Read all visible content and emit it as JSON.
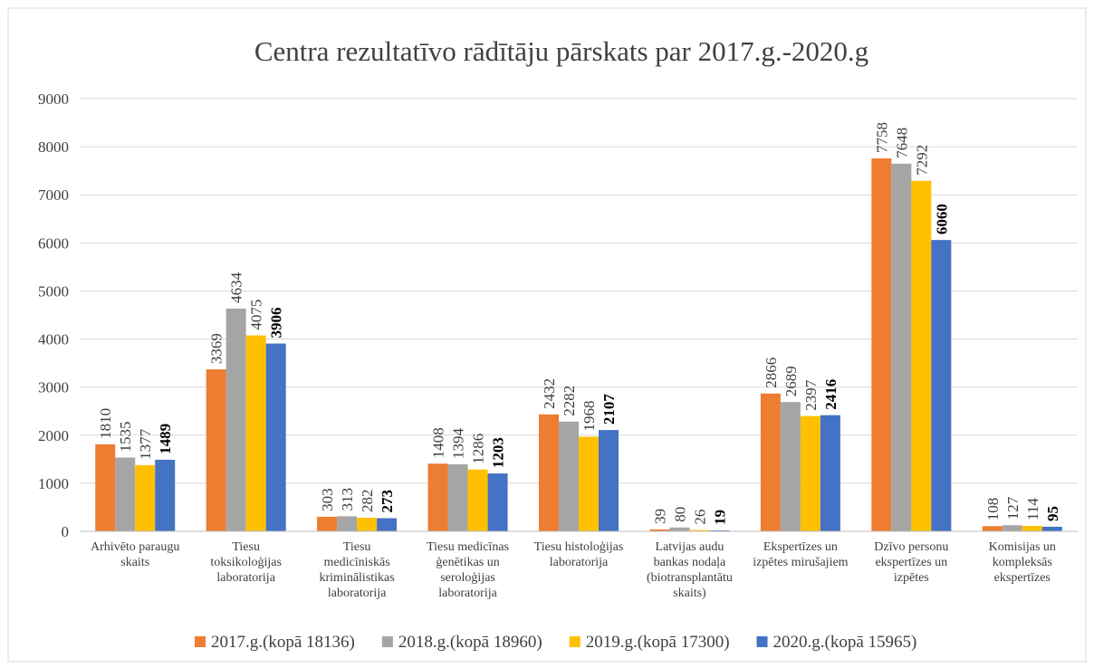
{
  "chart_data": {
    "type": "bar",
    "title": "Centra rezultatīvo rādītāju pārskats  par 2017.g.-2020.g",
    "categories": [
      "Arhivēto paraugu\nskaits",
      "Tiesu\ntoksikoloģijas\nlaboratorija",
      "Tiesu\nmedicīniskās\nkriminālistikas\nlaboratorija",
      "Tiesu medicīnas\nģenētikas un\nseroloģijas\nlaboratorija",
      "Tiesu histoloģijas\nlaboratorija",
      "Latvijas audu\nbankas nodaļa\n(biotransplantātu\nskaits)",
      "Ekspertīzes un\nizpētes mirušajiem",
      "Dzīvo personu\nekspertīzes un\nizpētes",
      "Komisijas un\nkompleksās\nekspertīzes"
    ],
    "series": [
      {
        "name": "2017.g.(kopā 18136)",
        "color": "#ED7D31",
        "values": [
          1810,
          3369,
          303,
          1408,
          2432,
          39,
          2866,
          7758,
          108
        ]
      },
      {
        "name": "2018.g.(kopā 18960)",
        "color": "#A5A5A5",
        "values": [
          1535,
          4634,
          313,
          1394,
          2282,
          80,
          2689,
          7648,
          127
        ]
      },
      {
        "name": "2019.g.(kopā 17300)",
        "color": "#FFC000",
        "values": [
          1377,
          4075,
          282,
          1286,
          1968,
          26,
          2397,
          7292,
          114
        ]
      },
      {
        "name": "2020.g.(kopā 15965)",
        "color": "#4472C4",
        "values": [
          1489,
          3906,
          273,
          1203,
          2107,
          19,
          2416,
          6060,
          95
        ],
        "value_label_bold": true
      }
    ],
    "ylim": [
      0,
      9000
    ],
    "yticks": [
      0,
      1000,
      2000,
      3000,
      4000,
      5000,
      6000,
      7000,
      8000,
      9000
    ],
    "grid": true,
    "legend": "bottom"
  }
}
